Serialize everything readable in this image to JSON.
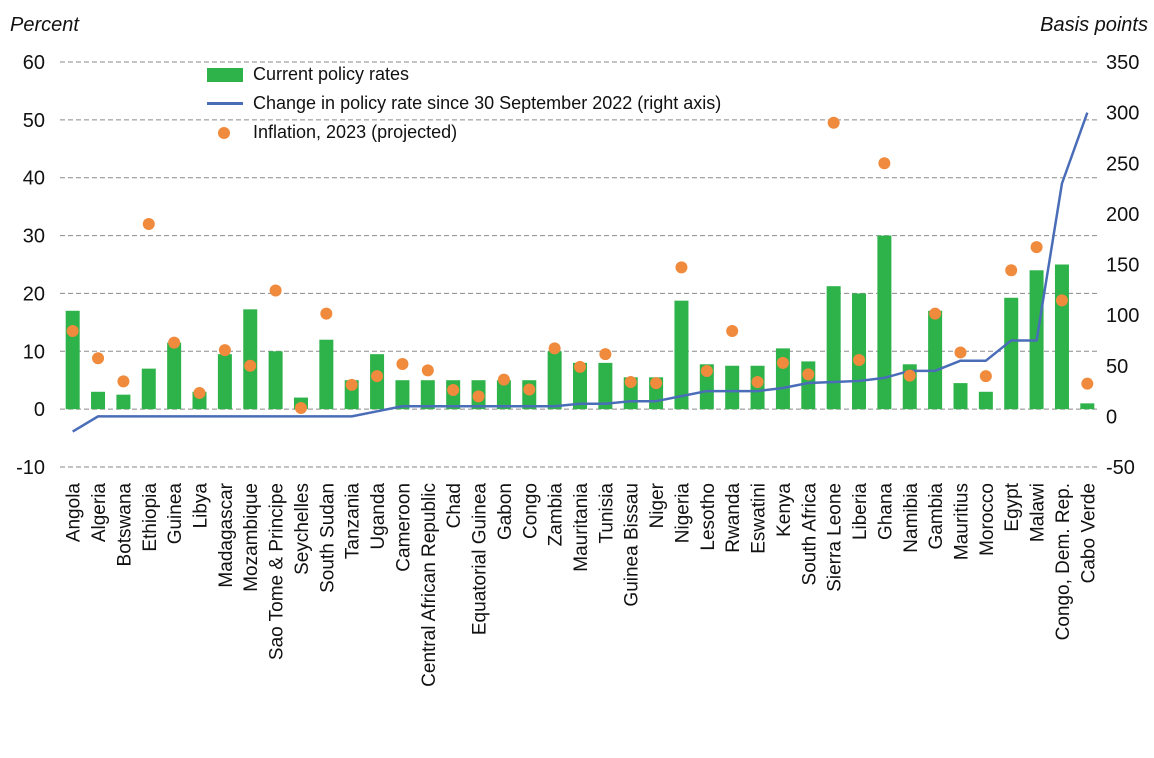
{
  "chart_data": {
    "type": "bar",
    "left_axis_title": "Percent",
    "right_axis_title": "Basis points",
    "ylim_left": [
      -10,
      60
    ],
    "yticks_left": [
      -10,
      0,
      10,
      20,
      30,
      40,
      50,
      60
    ],
    "ylim_right": [
      -50,
      350
    ],
    "yticks_right": [
      -50,
      0,
      50,
      100,
      150,
      200,
      250,
      300,
      350
    ],
    "grid": "dashed horizontal",
    "legend_position": "top-left",
    "categories": [
      "Angola",
      "Algeria",
      "Botswana",
      "Ethiopia",
      "Guinea",
      "Libya",
      "Madagascar",
      "Mozambique",
      "Sao Tome & Principe",
      "Seychelles",
      "South Sudan",
      "Tanzania",
      "Uganda",
      "Cameroon",
      "Central African Republic",
      "Chad",
      "Equatorial Guinea",
      "Gabon",
      "Congo",
      "Zambia",
      "Mauritania",
      "Tunisia",
      "Guinea Bissau",
      "Niger",
      "Nigeria",
      "Lesotho",
      "Rwanda",
      "Eswatini",
      "Kenya",
      "South Africa",
      "Sierra Leone",
      "Liberia",
      "Ghana",
      "Namibia",
      "Gambia",
      "Mauritius",
      "Morocco",
      "Egypt",
      "Malawi",
      "Congo, Dem. Rep.",
      "Cabo Verde"
    ],
    "series": [
      {
        "name": "Current policy rates",
        "type": "bar",
        "axis": "left",
        "color": "#2db34a",
        "values": [
          17,
          3,
          2.5,
          7,
          11.5,
          3,
          9.5,
          17.25,
          10,
          2,
          12,
          5,
          9.5,
          5,
          5,
          5,
          5,
          5,
          5,
          10,
          8,
          8,
          5.5,
          5.5,
          18.75,
          7.75,
          7.5,
          7.5,
          10.5,
          8.25,
          21.25,
          20,
          30,
          7.75,
          17,
          4.5,
          3,
          19.25,
          24,
          25,
          1
        ]
      },
      {
        "name": "Change in policy rate since 30 September 2022 (right axis)",
        "type": "line",
        "axis": "right",
        "color": "#4a6db8",
        "values": [
          -15,
          0,
          0,
          0,
          0,
          0,
          0,
          0,
          0,
          0,
          0,
          0,
          5,
          10,
          10,
          10,
          10,
          10,
          10,
          10,
          12.5,
          12.5,
          15,
          15,
          20,
          25,
          25,
          25,
          28,
          33,
          34,
          35,
          38,
          45,
          45,
          55,
          55,
          75,
          75,
          230,
          300
        ]
      },
      {
        "name": "Inflation, 2023 (projected)",
        "type": "scatter",
        "axis": "left",
        "color": "#f08a3c",
        "values": [
          13.5,
          8.8,
          4.8,
          32,
          11.5,
          2.8,
          10.2,
          7.5,
          20.5,
          0.2,
          16.5,
          4.2,
          5.7,
          7.8,
          6.7,
          3.3,
          2.2,
          5.1,
          3.4,
          10.5,
          7.3,
          9.5,
          4.7,
          4.5,
          24.5,
          6.6,
          13.5,
          4.7,
          8,
          6,
          49.5,
          8.5,
          42.5,
          5.8,
          16.5,
          9.8,
          5.7,
          24,
          28,
          18.8,
          4.4
        ]
      }
    ]
  }
}
